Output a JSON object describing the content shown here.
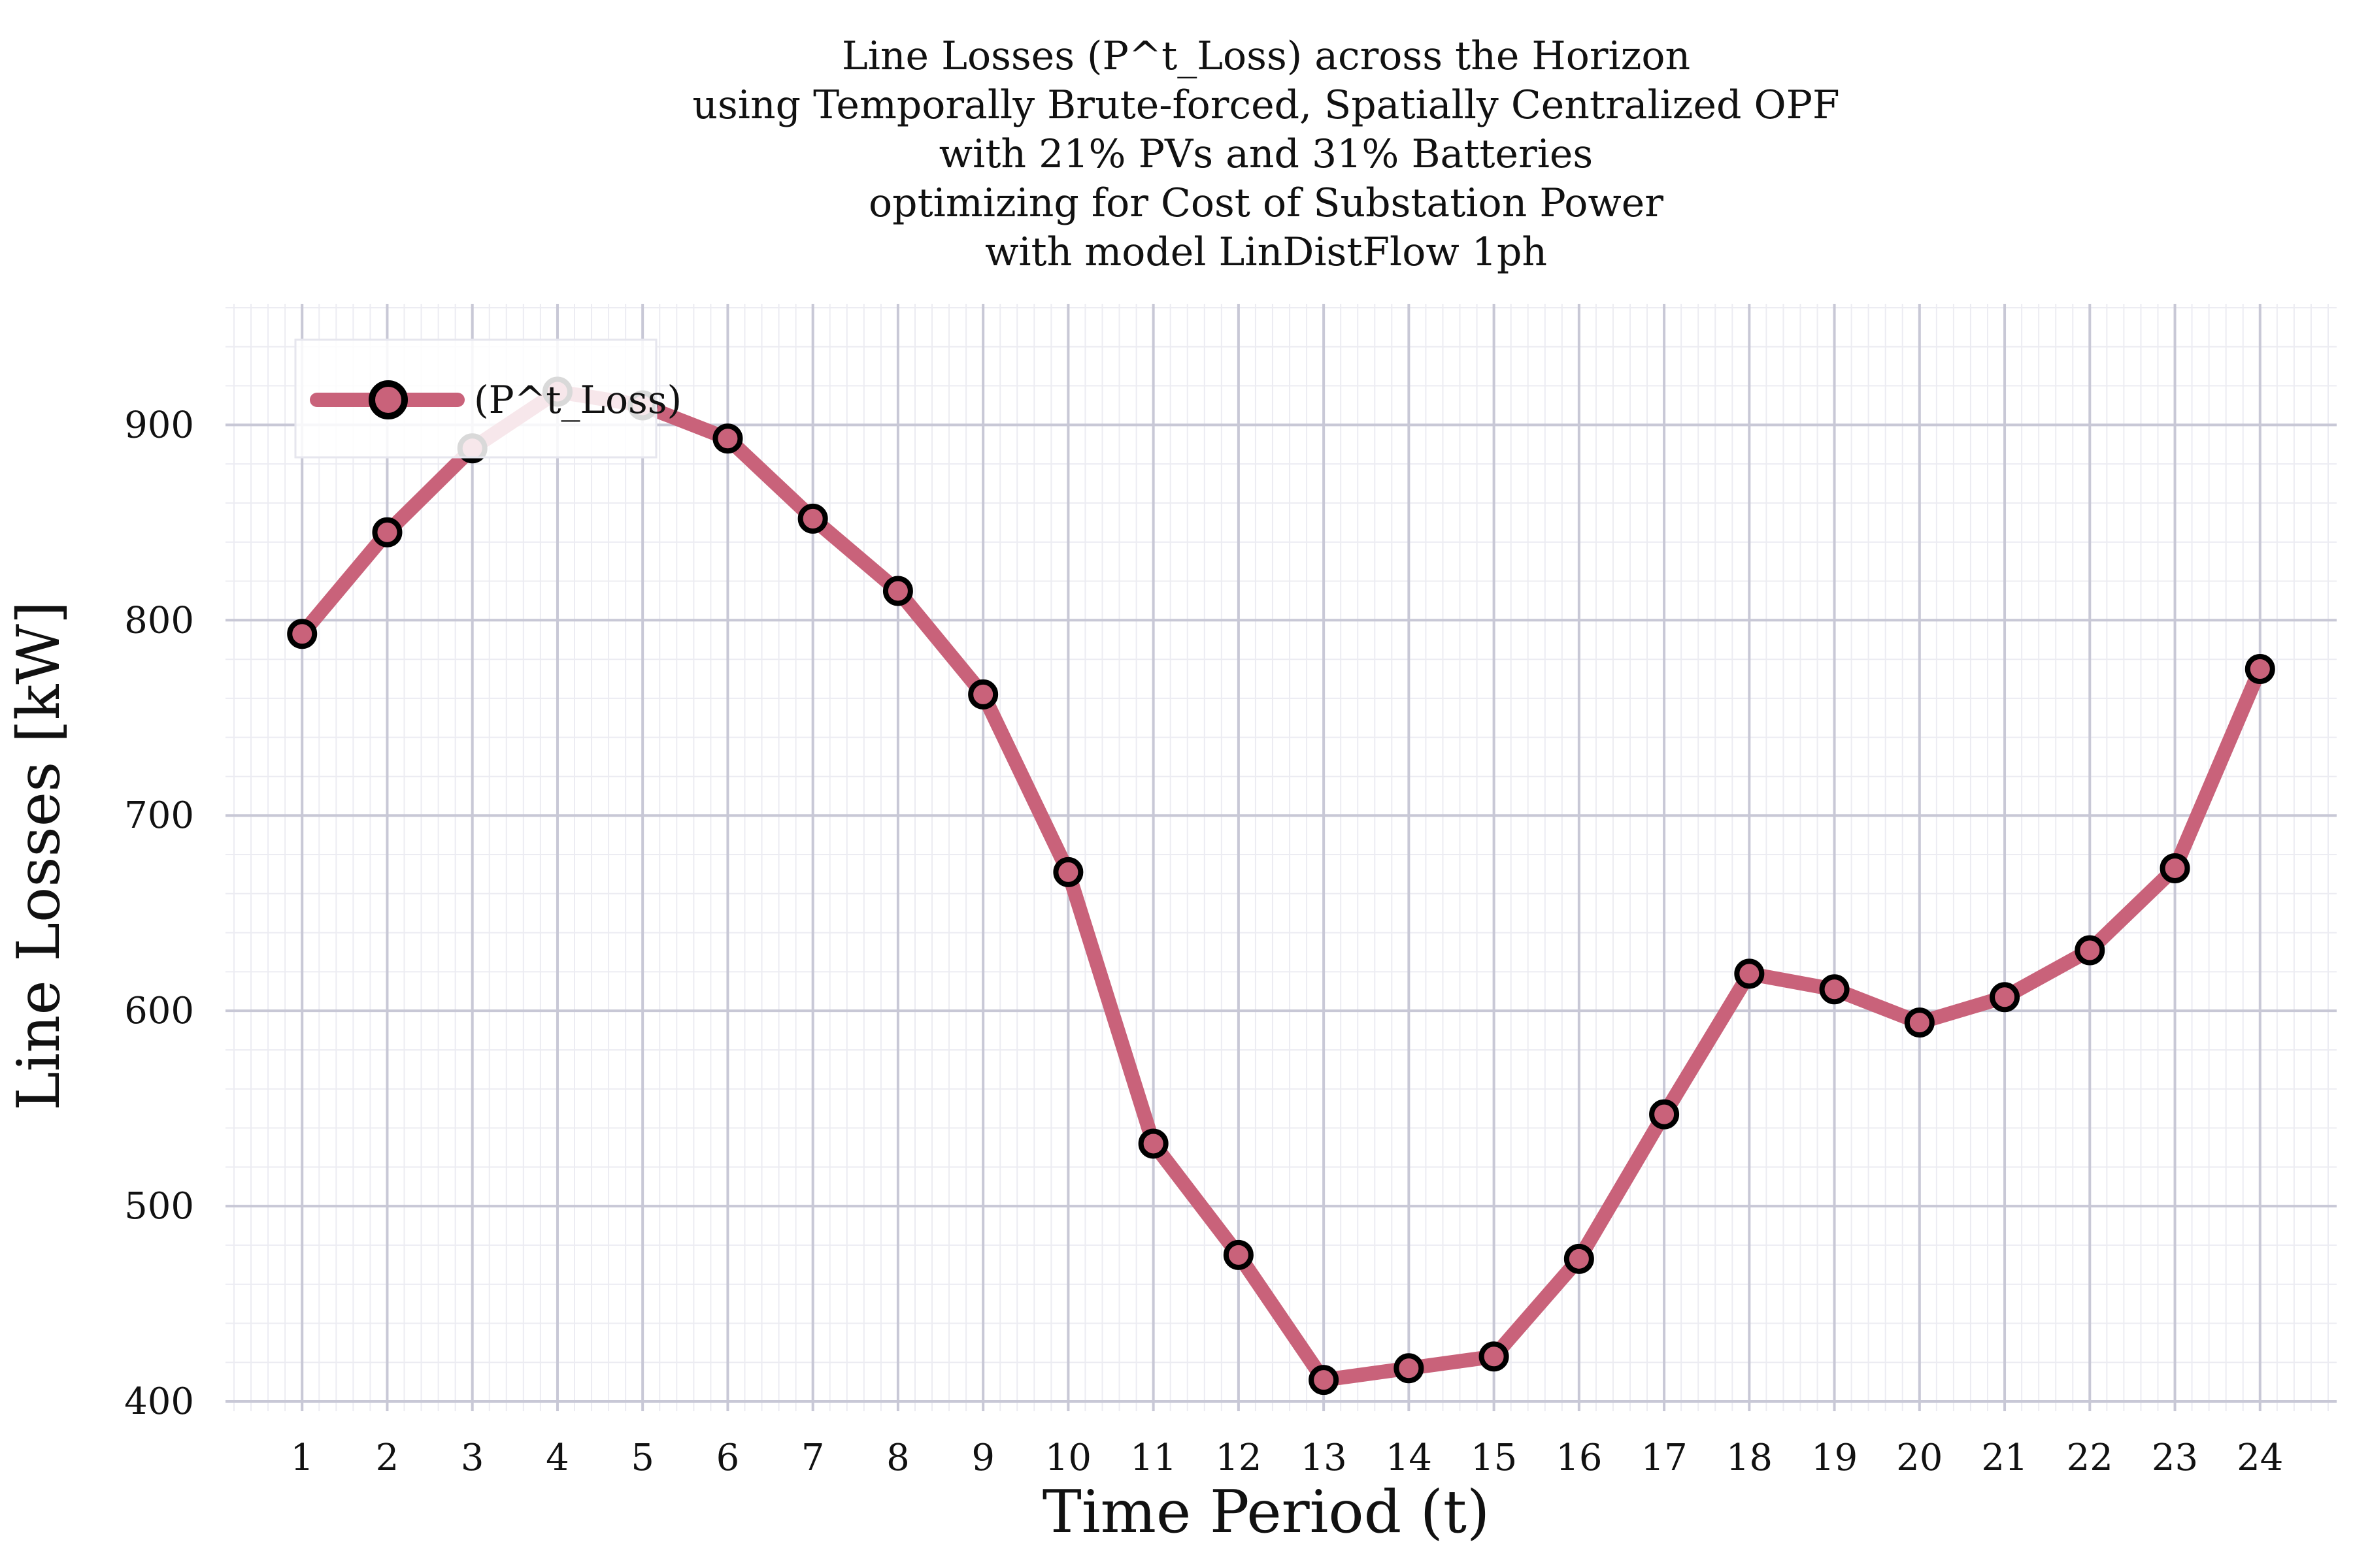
{
  "chart_data": {
    "type": "line",
    "title_lines": [
      "Line Losses (P^t_Loss) across the Horizon",
      "using Temporally Brute-forced, Spatially Centralized OPF",
      "with 21% PVs and 31% Batteries",
      "optimizing for Cost of Substation Power",
      "with model LinDistFlow 1ph"
    ],
    "xlabel": "Time Period (t)",
    "ylabel": "Line Losses [kW]",
    "x": [
      1,
      2,
      3,
      4,
      5,
      6,
      7,
      8,
      9,
      10,
      11,
      12,
      13,
      14,
      15,
      16,
      17,
      18,
      19,
      20,
      21,
      22,
      23,
      24
    ],
    "xlim": [
      0.1,
      24.9
    ],
    "ylim": [
      395,
      962
    ],
    "yticks": [
      400,
      500,
      600,
      700,
      800,
      900
    ],
    "series": [
      {
        "name": "(P^t_Loss)",
        "values": [
          793,
          845,
          888,
          917,
          910,
          893,
          852,
          815,
          762,
          671,
          532,
          475,
          411,
          417,
          423,
          473,
          547,
          619,
          611,
          594,
          607,
          631,
          673,
          775
        ]
      }
    ],
    "legend_position": "top-left",
    "grid": true,
    "colors": {
      "line": "#c9627a",
      "marker_edge": "#000000",
      "major_grid": "#c8c8d6",
      "minor_grid": "#ececf2"
    }
  }
}
